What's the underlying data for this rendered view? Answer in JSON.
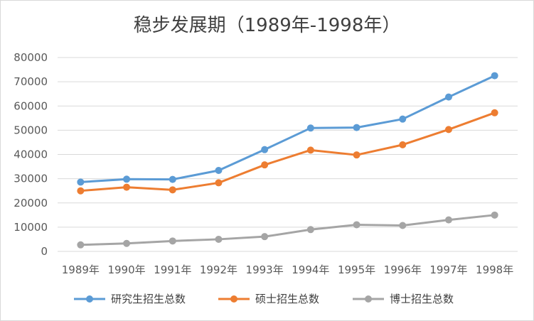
{
  "chart_data": {
    "type": "line",
    "title": "稳步发展期（1989年-1998年）",
    "categories": [
      "1989年",
      "1990年",
      "1991年",
      "1992年",
      "1993年",
      "1994年",
      "1995年",
      "1996年",
      "1997年",
      "1998年"
    ],
    "ylim": [
      0,
      80000
    ],
    "yticks": [
      0,
      10000,
      20000,
      30000,
      40000,
      50000,
      60000,
      70000,
      80000
    ],
    "grid": true,
    "legend_position": "bottom",
    "series": [
      {
        "name": "研究生招生总数",
        "color": "#5b9bd5",
        "values": [
          28600,
          29800,
          29700,
          33400,
          42000,
          50900,
          51100,
          54600,
          63700,
          72500
        ]
      },
      {
        "name": "硕士招生总数",
        "color": "#ed7d31",
        "values": [
          25000,
          26500,
          25400,
          28300,
          35700,
          41800,
          39800,
          44000,
          50300,
          57200
        ]
      },
      {
        "name": "博士招生总数",
        "color": "#a5a5a5",
        "values": [
          2700,
          3300,
          4300,
          5000,
          6100,
          9000,
          11000,
          10700,
          13000,
          15000
        ]
      }
    ]
  }
}
